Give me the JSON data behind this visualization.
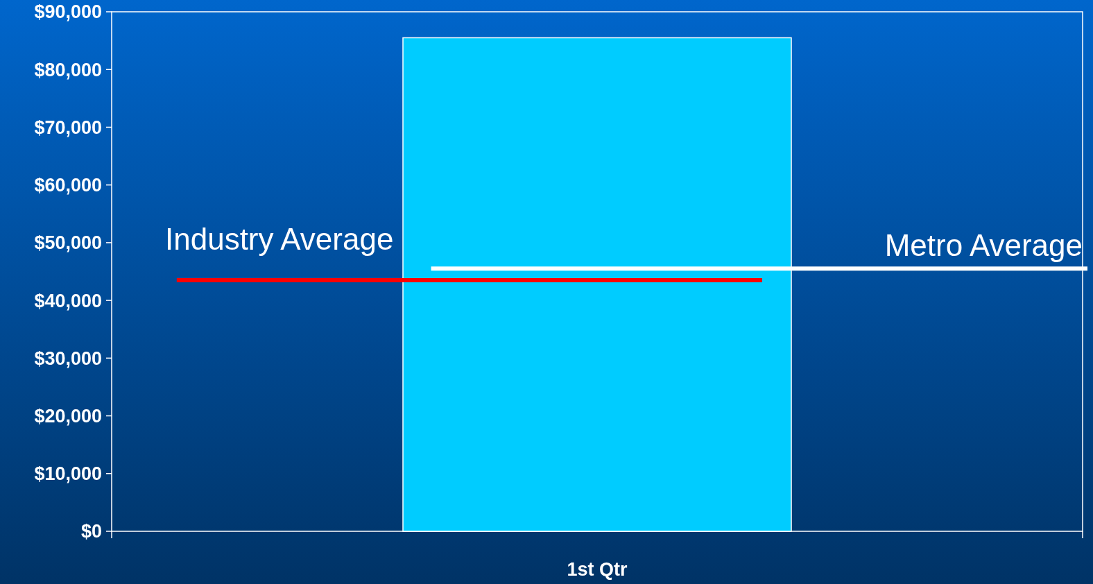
{
  "chart_data": {
    "type": "bar",
    "categories": [
      "1st Qtr"
    ],
    "values": [
      85500
    ],
    "color": "#00ccff",
    "ylim": [
      0,
      90000
    ],
    "yticks": [
      {
        "value": 0,
        "label": "$0"
      },
      {
        "value": 10000,
        "label": "$10,000"
      },
      {
        "value": 20000,
        "label": "$20,000"
      },
      {
        "value": 30000,
        "label": "$30,000"
      },
      {
        "value": 40000,
        "label": "$40,000"
      },
      {
        "value": 50000,
        "label": "$50,000"
      },
      {
        "value": 60000,
        "label": "$60,000"
      },
      {
        "value": 70000,
        "label": "$70,000"
      },
      {
        "value": 80000,
        "label": "$80,000"
      },
      {
        "value": 90000,
        "label": "$90,000"
      }
    ],
    "ref_lines": [
      {
        "axis": "y",
        "value": 43500,
        "label": "Industry Average",
        "color": "#ff0000"
      },
      {
        "axis": "y",
        "value": 45500,
        "label": "Metro Average",
        "color": "#ffffff"
      }
    ],
    "grid": false
  }
}
